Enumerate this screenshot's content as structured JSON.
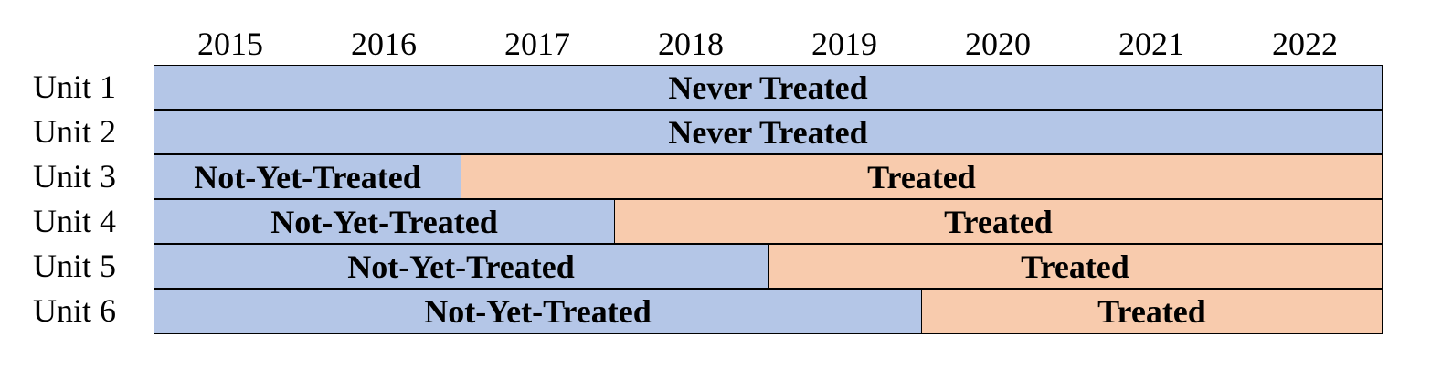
{
  "years": [
    "2015",
    "2016",
    "2017",
    "2018",
    "2019",
    "2020",
    "2021",
    "2022"
  ],
  "colors": {
    "untreated": "#b4c6e7",
    "treated": "#f8cbad"
  },
  "units": [
    {
      "label": "Unit 1",
      "segments": [
        {
          "text": "Never Treated",
          "status": "untreated",
          "years_span": 8
        }
      ]
    },
    {
      "label": "Unit 2",
      "segments": [
        {
          "text": "Never Treated",
          "status": "untreated",
          "years_span": 8
        }
      ]
    },
    {
      "label": "Unit 3",
      "segments": [
        {
          "text": "Not-Yet-Treated",
          "status": "untreated",
          "years_span": 2
        },
        {
          "text": "Treated",
          "status": "treated",
          "years_span": 6
        }
      ]
    },
    {
      "label": "Unit 4",
      "segments": [
        {
          "text": "Not-Yet-Treated",
          "status": "untreated",
          "years_span": 3
        },
        {
          "text": "Treated",
          "status": "treated",
          "years_span": 5
        }
      ]
    },
    {
      "label": "Unit 5",
      "segments": [
        {
          "text": "Not-Yet-Treated",
          "status": "untreated",
          "years_span": 4
        },
        {
          "text": "Treated",
          "status": "treated",
          "years_span": 4
        }
      ]
    },
    {
      "label": "Unit 6",
      "segments": [
        {
          "text": "Not-Yet-Treated",
          "status": "untreated",
          "years_span": 5
        },
        {
          "text": "Treated",
          "status": "treated",
          "years_span": 3
        }
      ]
    }
  ]
}
